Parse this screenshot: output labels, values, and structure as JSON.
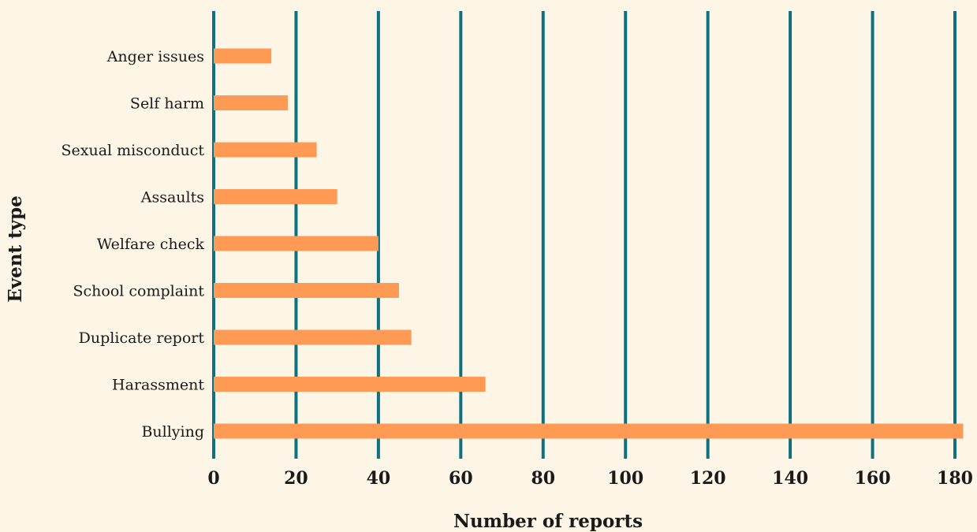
{
  "chart_data": {
    "type": "bar",
    "orientation": "horizontal",
    "categories": [
      "Bullying",
      "Harassment",
      "Duplicate report",
      "School complaint",
      "Welfare check",
      "Assaults",
      "Sexual misconduct",
      "Self harm",
      "Anger issues"
    ],
    "values": [
      182,
      66,
      48,
      45,
      40,
      30,
      25,
      18,
      14
    ],
    "xlabel": "Number of reports",
    "ylabel": "Event type",
    "xlim": [
      0,
      182
    ],
    "xticks": [
      0,
      20,
      40,
      60,
      80,
      100,
      120,
      140,
      160,
      180
    ],
    "grid": "vertical",
    "colors": {
      "bar": "#ff9a55",
      "grid": "#0e7182",
      "background": "#fdf6e6"
    }
  }
}
